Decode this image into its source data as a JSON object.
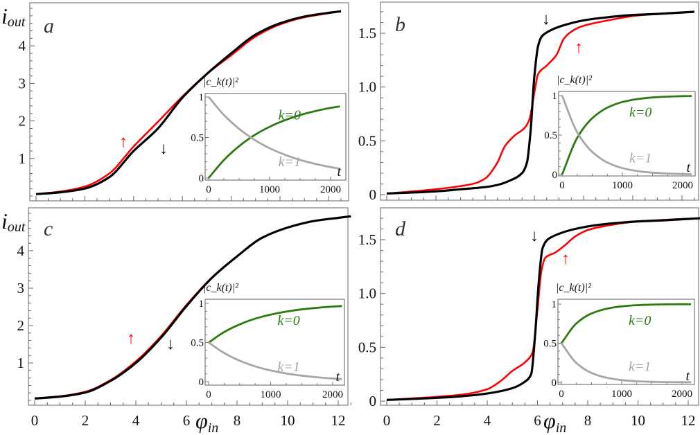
{
  "chart_data": [
    {
      "panel": "a",
      "type": "line",
      "ylabel": {
        "base": "i",
        "sub": "out"
      },
      "xlabel": null,
      "xlim": [
        0,
        12.5
      ],
      "ylim": [
        0,
        5
      ],
      "xticks": [
        0,
        2,
        4,
        6,
        8,
        10,
        12
      ],
      "xtick_labels_shown": false,
      "yticks": [
        1,
        2,
        3,
        4
      ],
      "ytick_labels": [
        "1",
        "2",
        "3",
        "4"
      ],
      "series": [
        {
          "direction": "up",
          "color": "#ff0000",
          "x": [
            0,
            1,
            2,
            3,
            4,
            5,
            6,
            7,
            8,
            9,
            10,
            11,
            12,
            12.5
          ],
          "y": [
            0.05,
            0.12,
            0.25,
            0.6,
            1.32,
            1.98,
            2.65,
            3.25,
            3.75,
            4.25,
            4.57,
            4.76,
            4.87,
            4.93
          ]
        },
        {
          "direction": "down",
          "color": "#000000",
          "x": [
            0,
            1,
            2,
            3,
            4,
            5,
            6,
            7,
            8,
            9,
            10,
            11,
            12,
            12.5
          ],
          "y": [
            0.05,
            0.1,
            0.2,
            0.5,
            1.2,
            1.8,
            2.62,
            3.25,
            3.8,
            4.3,
            4.6,
            4.78,
            4.88,
            4.92
          ]
        }
      ],
      "arrows": [
        {
          "glyph": "↑",
          "color": "#ff0000"
        },
        {
          "glyph": "↓",
          "color": "#000000"
        }
      ],
      "inset": {
        "ylabel": "|c_k(t)|²",
        "xlabel": "t",
        "xticks": [
          0,
          1000,
          2000
        ],
        "ytick_labels": [
          "0",
          "0.5",
          "1"
        ],
        "yticks": [
          0,
          0.5,
          1
        ],
        "t": [
          0,
          250,
          500,
          750,
          1000,
          1250,
          1500,
          1750,
          2000,
          2150
        ],
        "series": [
          {
            "label": "k=0",
            "color": "#2d7a12",
            "y": [
              0,
              0.221,
              0.393,
              0.528,
              0.632,
              0.713,
              0.777,
              0.826,
              0.865,
              0.884
            ]
          },
          {
            "label": "k=1",
            "color": "#a6a6a6",
            "y": [
              1,
              0.779,
              0.607,
              0.472,
              0.368,
              0.287,
              0.223,
              0.174,
              0.135,
              0.116
            ]
          }
        ]
      }
    },
    {
      "panel": "b",
      "type": "line",
      "xlim": [
        0,
        12.5
      ],
      "ylim": [
        0,
        1.75
      ],
      "xticks": [
        0,
        2,
        4,
        6,
        8,
        10,
        12
      ],
      "xtick_labels_shown": false,
      "yticks": [
        0,
        0.5,
        1.0,
        1.5
      ],
      "ytick_labels": [
        "0",
        "0.5",
        "1.0",
        "1.5"
      ],
      "series": [
        {
          "direction": "up",
          "color": "#ff0000",
          "x": [
            0,
            2,
            3,
            3.5,
            4,
            4.5,
            4.8,
            5.2,
            5.6,
            5.8,
            6.0,
            6.15,
            6.5,
            6.9,
            7.2,
            7.6,
            8,
            9,
            10,
            11,
            12.5
          ],
          "y": [
            0.01,
            0.05,
            0.08,
            0.1,
            0.15,
            0.3,
            0.45,
            0.55,
            0.62,
            0.7,
            0.95,
            1.12,
            1.2,
            1.3,
            1.45,
            1.53,
            1.57,
            1.62,
            1.66,
            1.68,
            1.7
          ]
        },
        {
          "direction": "down",
          "color": "#000000",
          "x": [
            0,
            2,
            3,
            4,
            4.5,
            5,
            5.5,
            5.7,
            5.85,
            6.0,
            6.15,
            6.3,
            6.6,
            7,
            8,
            9,
            10,
            11,
            12.5
          ],
          "y": [
            0.01,
            0.03,
            0.05,
            0.07,
            0.09,
            0.13,
            0.2,
            0.3,
            0.6,
            1.1,
            1.38,
            1.47,
            1.52,
            1.56,
            1.62,
            1.65,
            1.67,
            1.68,
            1.7
          ]
        }
      ],
      "arrows": [
        {
          "glyph": "↓",
          "color": "#000000"
        },
        {
          "glyph": "↑",
          "color": "#ff0000"
        }
      ],
      "inset": {
        "ylabel": "|c_k(t)|²",
        "xlabel": "t",
        "xticks": [
          0,
          1000,
          2000
        ],
        "ytick_labels": [
          "0",
          "0.5",
          "1"
        ],
        "yticks": [
          0,
          0.5,
          1
        ],
        "t": [
          0,
          250,
          500,
          750,
          1000,
          1250,
          1500,
          1750,
          2000,
          2150
        ],
        "series": [
          {
            "label": "k=0",
            "color": "#2d7a12",
            "y": [
              0,
              0.465,
              0.713,
              0.847,
              0.918,
              0.956,
              0.976,
              0.987,
              0.993,
              0.995
            ]
          },
          {
            "label": "k=1",
            "color": "#a6a6a6",
            "y": [
              1,
              0.535,
              0.287,
              0.153,
              0.082,
              0.044,
              0.024,
              0.013,
              0.007,
              0.005
            ]
          }
        ]
      }
    },
    {
      "panel": "c",
      "type": "line",
      "ylabel": {
        "base": "i",
        "sub": "out"
      },
      "xlabel": {
        "base": "φ",
        "sub": "in"
      },
      "xlim": [
        0,
        12.5
      ],
      "ylim": [
        0,
        5
      ],
      "xticks": [
        0,
        2,
        4,
        6,
        8,
        10,
        12
      ],
      "xtick_labels": [
        "0",
        "2",
        "4",
        "6",
        "8",
        "10",
        "12"
      ],
      "xtick_labels_shown": true,
      "yticks": [
        1,
        2,
        3,
        4
      ],
      "ytick_labels": [
        "1",
        "2",
        "3",
        "4"
      ],
      "series": [
        {
          "direction": "up",
          "color": "#ff0000",
          "x": [
            0,
            1,
            2,
            3,
            4,
            5,
            6,
            7,
            8,
            9,
            10,
            11,
            12,
            12.5
          ],
          "y": [
            0.05,
            0.11,
            0.23,
            0.54,
            1.04,
            1.72,
            2.55,
            3.28,
            3.85,
            4.35,
            4.62,
            4.79,
            4.88,
            4.92
          ]
        },
        {
          "direction": "down",
          "color": "#000000",
          "x": [
            0,
            1,
            2,
            3,
            4,
            5,
            6,
            7,
            8,
            9,
            10,
            11,
            12,
            12.5
          ],
          "y": [
            0.05,
            0.1,
            0.21,
            0.52,
            1.0,
            1.68,
            2.52,
            3.27,
            3.85,
            4.35,
            4.62,
            4.79,
            4.88,
            4.92
          ]
        }
      ],
      "arrows": [
        {
          "glyph": "↑",
          "color": "#ff0000"
        },
        {
          "glyph": "↓",
          "color": "#000000"
        }
      ],
      "inset": {
        "ylabel": "|c_k(t)|²",
        "xlabel": "t",
        "xticks": [
          0,
          1000,
          2000
        ],
        "ytick_labels": [
          "0",
          "0.5",
          "1"
        ],
        "yticks": [
          0,
          0.5,
          1
        ],
        "t": [
          0,
          250,
          500,
          750,
          1000,
          1250,
          1500,
          1750,
          2000,
          2150
        ],
        "series": [
          {
            "label": "k=0",
            "color": "#2d7a12",
            "y": [
              0.5,
              0.634,
              0.732,
              0.804,
              0.857,
              0.895,
              0.923,
              0.944,
              0.959,
              0.966
            ]
          },
          {
            "label": "k=1",
            "color": "#a6a6a6",
            "y": [
              0.5,
              0.366,
              0.268,
              0.196,
              0.143,
              0.105,
              0.077,
              0.056,
              0.041,
              0.034
            ]
          }
        ]
      }
    },
    {
      "panel": "d",
      "type": "line",
      "xlabel": {
        "base": "φ",
        "sub": "in"
      },
      "xlim": [
        0,
        12.5
      ],
      "ylim": [
        0,
        1.75
      ],
      "xticks": [
        0,
        2,
        4,
        6,
        8,
        10,
        12
      ],
      "xtick_labels": [
        "0",
        "2",
        "4",
        "6",
        "8",
        "10",
        "12"
      ],
      "xtick_labels_shown": true,
      "yticks": [
        0,
        0.5,
        1.0,
        1.5
      ],
      "ytick_labels": [
        "0",
        "0.5",
        "1.0",
        "1.5"
      ],
      "series": [
        {
          "direction": "up",
          "color": "#ff0000",
          "x": [
            0,
            2,
            3,
            4,
            4.5,
            5,
            5.5,
            5.8,
            6.0,
            6.15,
            6.3,
            6.7,
            7.1,
            7.5,
            8,
            9,
            10,
            12.5
          ],
          "y": [
            0.01,
            0.04,
            0.06,
            0.11,
            0.18,
            0.28,
            0.36,
            0.45,
            0.85,
            1.2,
            1.33,
            1.38,
            1.45,
            1.53,
            1.59,
            1.64,
            1.67,
            1.7
          ]
        },
        {
          "direction": "down",
          "color": "#000000",
          "x": [
            0,
            2,
            3,
            4,
            5,
            5.5,
            5.75,
            5.9,
            6.05,
            6.2,
            6.4,
            6.8,
            7.5,
            8.5,
            10,
            11,
            12.5
          ],
          "y": [
            0.01,
            0.03,
            0.045,
            0.07,
            0.12,
            0.18,
            0.25,
            0.6,
            1.1,
            1.42,
            1.5,
            1.55,
            1.6,
            1.64,
            1.67,
            1.68,
            1.7
          ]
        }
      ],
      "arrows": [
        {
          "glyph": "↓",
          "color": "#000000"
        },
        {
          "glyph": "↑",
          "color": "#ff0000"
        }
      ],
      "inset": {
        "ylabel": "|c_k(t)|²",
        "xlabel": "t",
        "xticks": [
          0,
          1000,
          2000
        ],
        "ytick_labels": [
          "0",
          "0.5",
          "1"
        ],
        "yticks": [
          0,
          0.5,
          1
        ],
        "t": [
          0,
          250,
          500,
          750,
          1000,
          1250,
          1500,
          1750,
          2000,
          2150
        ],
        "series": [
          {
            "label": "k=0",
            "color": "#2d7a12",
            "y": [
              0.5,
              0.755,
              0.88,
              0.941,
              0.971,
              0.986,
              0.993,
              0.997,
              0.998,
              0.999
            ]
          },
          {
            "label": "k=1",
            "color": "#a6a6a6",
            "y": [
              0.5,
              0.245,
              0.12,
              0.059,
              0.029,
              0.014,
              0.007,
              0.003,
              0.002,
              0.001
            ]
          }
        ]
      }
    }
  ]
}
